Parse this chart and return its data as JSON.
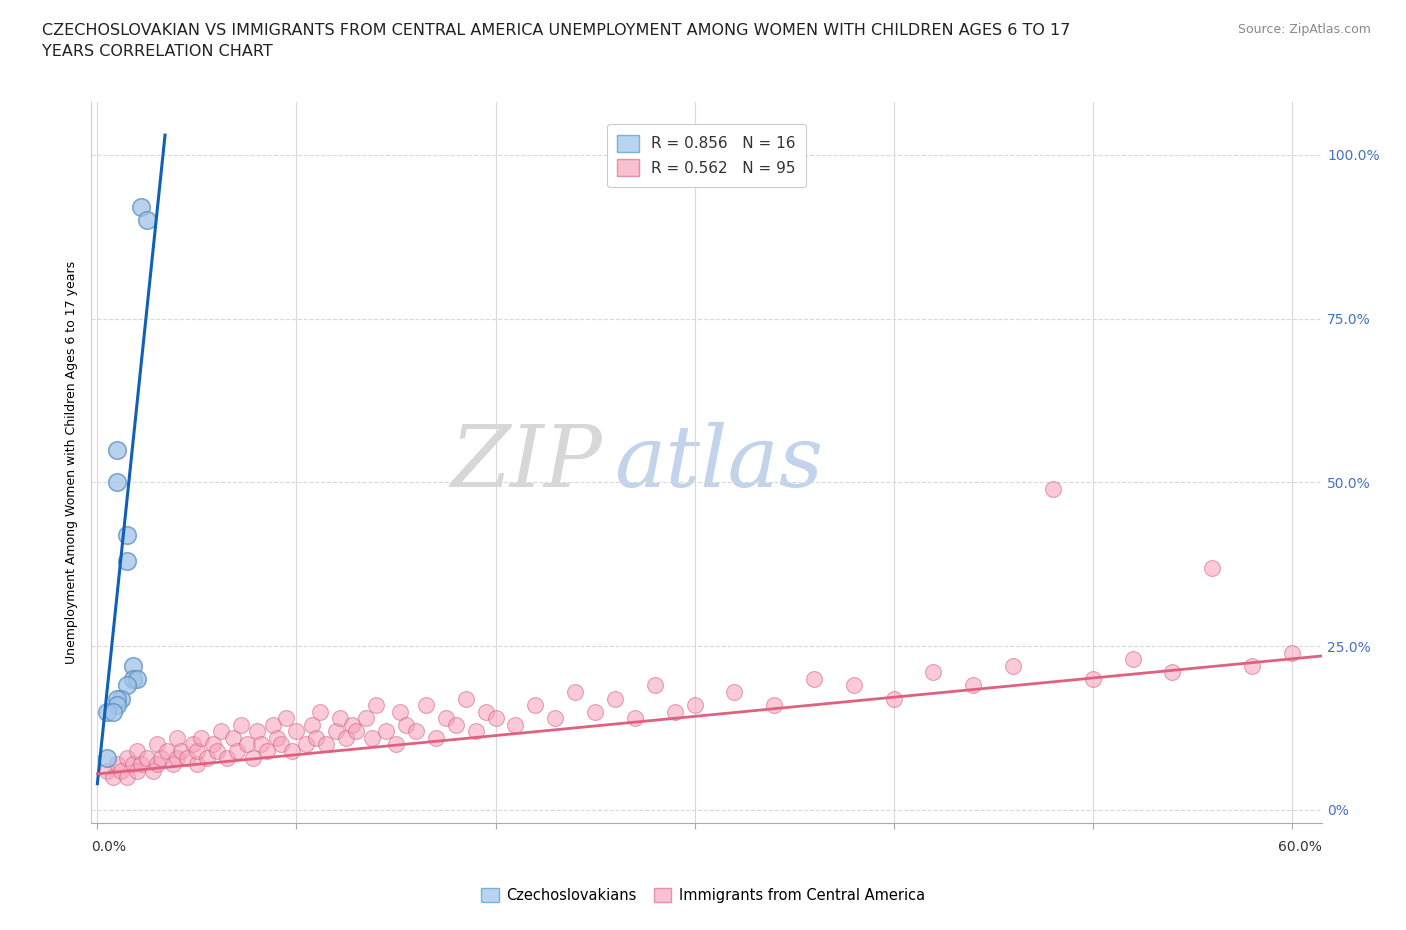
{
  "title_line1": "CZECHOSLOVAKIAN VS IMMIGRANTS FROM CENTRAL AMERICA UNEMPLOYMENT AMONG WOMEN WITH CHILDREN AGES 6 TO 17",
  "title_line2": "YEARS CORRELATION CHART",
  "source_text": "Source: ZipAtlas.com",
  "ylabel": "Unemployment Among Women with Children Ages 6 to 17 years",
  "y_tick_values": [
    0.0,
    0.25,
    0.5,
    0.75,
    1.0
  ],
  "y_tick_right_labels": [
    "0%",
    "25.0%",
    "50.0%",
    "75.0%",
    "100.0%"
  ],
  "x_lim": [
    -0.003,
    0.615
  ],
  "y_lim": [
    -0.02,
    1.08
  ],
  "legend_entries": [
    {
      "label": "R = 0.856   N = 16",
      "facecolor": "#b8d4ee",
      "edgecolor": "#7ab3d9"
    },
    {
      "label": "R = 0.562   N = 95",
      "facecolor": "#f8c0d0",
      "edgecolor": "#e890a8"
    }
  ],
  "watermark_zip": "ZIP",
  "watermark_atlas": "atlas",
  "watermark_zip_color": "#d0d0d0",
  "watermark_atlas_color": "#b8cce8",
  "blue_scatter_x": [
    0.022,
    0.025,
    0.01,
    0.01,
    0.015,
    0.015,
    0.018,
    0.018,
    0.02,
    0.015,
    0.012,
    0.01,
    0.01,
    0.005,
    0.008,
    0.005
  ],
  "blue_scatter_y": [
    0.92,
    0.9,
    0.55,
    0.5,
    0.42,
    0.38,
    0.22,
    0.2,
    0.2,
    0.19,
    0.17,
    0.17,
    0.16,
    0.15,
    0.15,
    0.08
  ],
  "blue_scatter_color": "#a0c4e8",
  "blue_scatter_edge": "#6090c0",
  "blue_line_x": [
    0.0,
    0.034
  ],
  "blue_line_y": [
    0.04,
    1.03
  ],
  "blue_line_color": "#1060b8",
  "pink_scatter_x": [
    0.005,
    0.008,
    0.01,
    0.012,
    0.015,
    0.015,
    0.018,
    0.02,
    0.02,
    0.022,
    0.025,
    0.028,
    0.03,
    0.03,
    0.032,
    0.035,
    0.038,
    0.04,
    0.04,
    0.042,
    0.045,
    0.048,
    0.05,
    0.05,
    0.052,
    0.055,
    0.058,
    0.06,
    0.062,
    0.065,
    0.068,
    0.07,
    0.072,
    0.075,
    0.078,
    0.08,
    0.082,
    0.085,
    0.088,
    0.09,
    0.092,
    0.095,
    0.098,
    0.1,
    0.105,
    0.108,
    0.11,
    0.112,
    0.115,
    0.12,
    0.122,
    0.125,
    0.128,
    0.13,
    0.135,
    0.138,
    0.14,
    0.145,
    0.15,
    0.152,
    0.155,
    0.16,
    0.165,
    0.17,
    0.175,
    0.18,
    0.185,
    0.19,
    0.195,
    0.2,
    0.21,
    0.22,
    0.23,
    0.24,
    0.25,
    0.26,
    0.27,
    0.28,
    0.29,
    0.3,
    0.32,
    0.34,
    0.36,
    0.38,
    0.4,
    0.42,
    0.44,
    0.46,
    0.48,
    0.5,
    0.52,
    0.54,
    0.56,
    0.58,
    0.6
  ],
  "pink_scatter_y": [
    0.06,
    0.05,
    0.07,
    0.06,
    0.05,
    0.08,
    0.07,
    0.06,
    0.09,
    0.07,
    0.08,
    0.06,
    0.07,
    0.1,
    0.08,
    0.09,
    0.07,
    0.08,
    0.11,
    0.09,
    0.08,
    0.1,
    0.07,
    0.09,
    0.11,
    0.08,
    0.1,
    0.09,
    0.12,
    0.08,
    0.11,
    0.09,
    0.13,
    0.1,
    0.08,
    0.12,
    0.1,
    0.09,
    0.13,
    0.11,
    0.1,
    0.14,
    0.09,
    0.12,
    0.1,
    0.13,
    0.11,
    0.15,
    0.1,
    0.12,
    0.14,
    0.11,
    0.13,
    0.12,
    0.14,
    0.11,
    0.16,
    0.12,
    0.1,
    0.15,
    0.13,
    0.12,
    0.16,
    0.11,
    0.14,
    0.13,
    0.17,
    0.12,
    0.15,
    0.14,
    0.13,
    0.16,
    0.14,
    0.18,
    0.15,
    0.17,
    0.14,
    0.19,
    0.15,
    0.16,
    0.18,
    0.16,
    0.2,
    0.19,
    0.17,
    0.21,
    0.19,
    0.22,
    0.49,
    0.2,
    0.23,
    0.21,
    0.37,
    0.22,
    0.24
  ],
  "pink_scatter_color": "#f8a0b8",
  "pink_scatter_edge": "#d06080",
  "pink_line_x": [
    0.0,
    0.615
  ],
  "pink_line_y": [
    0.055,
    0.235
  ],
  "pink_line_color": "#e06080",
  "bg_color": "#ffffff",
  "grid_color": "#d8d8d8",
  "title_fontsize": 11.5,
  "source_fontsize": 9,
  "ylabel_fontsize": 9,
  "tick_fontsize": 10,
  "bottom_legend_blue_label": "Czechoslovakians",
  "bottom_legend_pink_label": "Immigrants from Central America"
}
